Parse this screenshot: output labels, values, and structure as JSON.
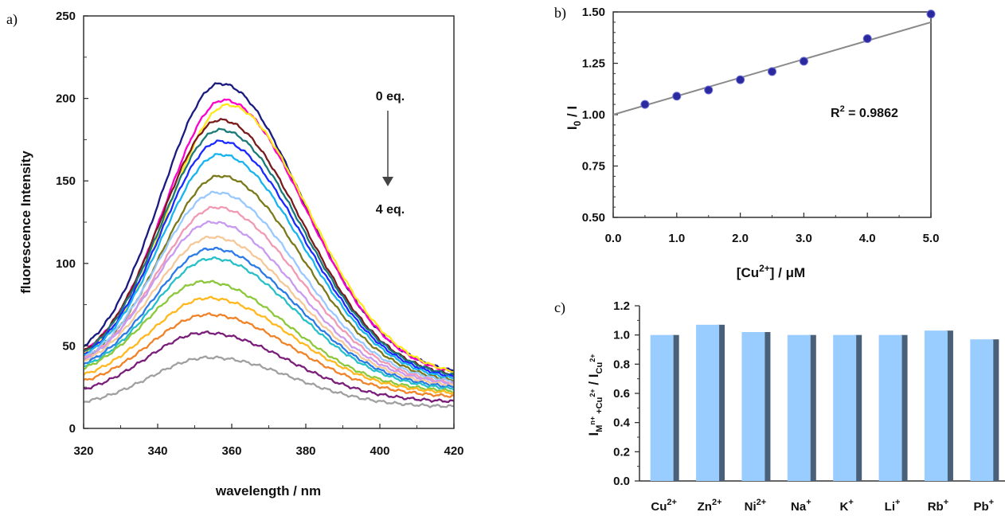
{
  "panels": {
    "a": {
      "label": "a)",
      "xlabel": "wavelength / nm",
      "ylabel": "fluorescence Intensity",
      "xlim": [
        320,
        420
      ],
      "ylim": [
        0,
        250
      ],
      "xticks": [
        "320",
        "340",
        "360",
        "380",
        "400",
        "420"
      ],
      "yticks": [
        "0",
        "50",
        "100",
        "150",
        "200",
        "250"
      ],
      "annotation_top": "0 eq.",
      "annotation_bottom": "4 eq."
    },
    "b": {
      "label": "b)",
      "xlabel_main": "[Cu",
      "xlabel_sup": "2+",
      "xlabel_tail": "] / μM",
      "ylabel_main": "I",
      "ylabel_sub": "0",
      "ylabel_tail": " / I",
      "xlim": [
        0,
        5
      ],
      "ylim": [
        0.5,
        1.5
      ],
      "xticks": [
        "0.0",
        "1.0",
        "2.0",
        "3.0",
        "4.0",
        "5.0"
      ],
      "yticks": [
        "0.50",
        "0.75",
        "1.00",
        "1.25",
        "1.50"
      ],
      "r2_main": "R",
      "r2_sup": "2",
      "r2_tail": " = 0.9862"
    },
    "c": {
      "label": "c)",
      "ylabel_main": "I",
      "ylabel_sub1": "M",
      "ylabel_sup1": "n+",
      "ylabel_sub2": " +Cu",
      "ylabel_sup2": "2+",
      "ylabel_mid": " / I",
      "ylabel_sub3": "Cu",
      "ylabel_sup3": "2+",
      "ylim": [
        0,
        1.2
      ],
      "yticks": [
        "0.0",
        "0.2",
        "0.4",
        "0.6",
        "0.8",
        "1.0",
        "1.2"
      ],
      "categories": [
        {
          "base": "Cu",
          "sup": "2+"
        },
        {
          "base": "Zn",
          "sup": "2+"
        },
        {
          "base": "Ni",
          "sup": "2+"
        },
        {
          "base": "Na",
          "sup": "+"
        },
        {
          "base": "K",
          "sup": "+"
        },
        {
          "base": "Li",
          "sup": "+"
        },
        {
          "base": "Rb",
          "sup": "+"
        },
        {
          "base": "Pb",
          "sup": "+"
        }
      ]
    }
  },
  "chart_data": [
    {
      "type": "line",
      "panel": "a",
      "xlabel": "wavelength / nm",
      "ylabel": "fluorescence Intensity",
      "xlim": [
        320,
        420
      ],
      "ylim": [
        0,
        250
      ],
      "series": [
        {
          "color": "#1a1a80",
          "peak": 209,
          "start": 38,
          "end": 32,
          "peak_x": 357
        },
        {
          "color": "#ff00cc",
          "peak": 199,
          "start": 37,
          "end": 31,
          "peak_x": 358
        },
        {
          "color": "#ffe81a",
          "peak": 196,
          "start": 37,
          "end": 31,
          "peak_x": 359
        },
        {
          "color": "#7a1a1a",
          "peak": 187,
          "start": 36,
          "end": 30,
          "peak_x": 357
        },
        {
          "color": "#1a7a7a",
          "peak": 181,
          "start": 36,
          "end": 30,
          "peak_x": 357
        },
        {
          "color": "#1a2aff",
          "peak": 174,
          "start": 35,
          "end": 29,
          "peak_x": 357
        },
        {
          "color": "#18b4f0",
          "peak": 166,
          "start": 35,
          "end": 28,
          "peak_x": 357
        },
        {
          "color": "#7a7a1a",
          "peak": 153,
          "start": 34,
          "end": 27,
          "peak_x": 357
        },
        {
          "color": "#99c8ff",
          "peak": 143,
          "start": 34,
          "end": 27,
          "peak_x": 356
        },
        {
          "color": "#f09ab4",
          "peak": 134,
          "start": 34,
          "end": 26,
          "peak_x": 356
        },
        {
          "color": "#c89af0",
          "peak": 125,
          "start": 33,
          "end": 26,
          "peak_x": 355
        },
        {
          "color": "#f5c89a",
          "peak": 116,
          "start": 33,
          "end": 25,
          "peak_x": 355
        },
        {
          "color": "#2a7ae8",
          "peak": 109,
          "start": 32,
          "end": 24,
          "peak_x": 355
        },
        {
          "color": "#28c0c8",
          "peak": 103,
          "start": 31,
          "end": 23,
          "peak_x": 355
        },
        {
          "color": "#8cc83c",
          "peak": 89,
          "start": 29,
          "end": 22,
          "peak_x": 353
        },
        {
          "color": "#ffb81e",
          "peak": 79,
          "start": 27,
          "end": 21,
          "peak_x": 354
        },
        {
          "color": "#f08228",
          "peak": 69,
          "start": 24,
          "end": 19,
          "peak_x": 354
        },
        {
          "color": "#7a1e7a",
          "peak": 58,
          "start": 19,
          "end": 16,
          "peak_x": 353
        },
        {
          "color": "#a0a0a0",
          "peak": 43,
          "start": 13,
          "end": 13,
          "peak_x": 354
        }
      ]
    },
    {
      "type": "scatter",
      "panel": "b",
      "xlabel": "[Cu2+] / μM",
      "ylabel": "I0 / I",
      "xlim": [
        0,
        5
      ],
      "ylim": [
        0.5,
        1.5
      ],
      "x": [
        0.5,
        1.0,
        1.5,
        2.0,
        2.5,
        3.0,
        4.0,
        5.0
      ],
      "y": [
        1.05,
        1.09,
        1.12,
        1.17,
        1.21,
        1.26,
        1.37,
        1.49
      ],
      "fit": {
        "intercept": 1.0,
        "slope": 0.09,
        "r2": 0.9862
      },
      "marker_color": "#2a2a9e",
      "line_color": "#8a8a8a"
    },
    {
      "type": "bar",
      "panel": "c",
      "ylabel": "IMn+ +Cu2+ / ICu2+",
      "ylim": [
        0,
        1.2
      ],
      "categories": [
        "Cu2+",
        "Zn2+",
        "Ni2+",
        "Na+",
        "K+",
        "Li+",
        "Rb+",
        "Pb+"
      ],
      "values": [
        1.0,
        1.07,
        1.02,
        1.0,
        1.0,
        1.0,
        1.03,
        0.97
      ],
      "bar_color": "#99ccff",
      "shadow_color": "#4a6078"
    }
  ]
}
